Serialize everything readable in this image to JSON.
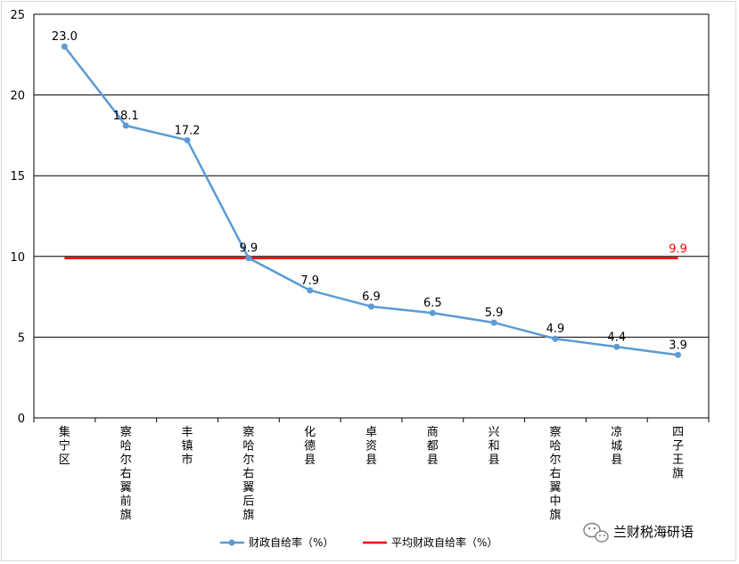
{
  "chart_data": {
    "type": "line",
    "title": "",
    "xlabel": "",
    "ylabel": "",
    "ylim": [
      0,
      25
    ],
    "yticks": [
      0,
      5,
      10,
      15,
      20,
      25
    ],
    "grid": "horizontal",
    "legend_position": "bottom",
    "categories": [
      "集宁区",
      "察哈尔右翼前旗",
      "丰镇市",
      "察哈尔右翼后旗",
      "化德县",
      "卓资县",
      "商都县",
      "兴和县",
      "察哈尔右翼中旗",
      "凉城县",
      "四子王旗"
    ],
    "series": [
      {
        "name": "财政自给率（%）",
        "color": "#5b9bd5",
        "values": [
          23.0,
          18.1,
          17.2,
          9.9,
          7.9,
          6.9,
          6.5,
          5.9,
          4.9,
          4.4,
          3.9
        ],
        "labels": [
          "23.0",
          "18.1",
          "17.2",
          "9.9",
          "7.9",
          "6.9",
          "6.5",
          "5.9",
          "4.9",
          "4.4",
          "3.9"
        ]
      },
      {
        "name": "平均财政自给率（%）",
        "color": "#ff0000",
        "value": 9.9,
        "label": "9.9"
      }
    ]
  },
  "watermark": {
    "text": "兰财税海研语",
    "icon": "wechat-icon"
  }
}
